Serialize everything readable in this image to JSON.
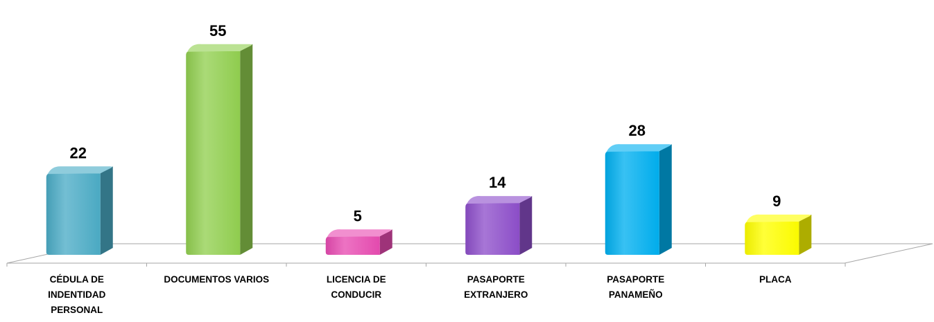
{
  "chart_data": {
    "type": "bar",
    "categories": [
      [
        "CÉDULA DE",
        "INDENTIDAD",
        "PERSONAL"
      ],
      [
        "DOCUMENTOS VARIOS"
      ],
      [
        "LICENCIA DE",
        "CONDUCIR"
      ],
      [
        "PASAPORTE",
        "EXTRANJERO"
      ],
      [
        "PASAPORTE",
        "PANAMEÑO"
      ],
      [
        "PLACA"
      ]
    ],
    "values": [
      22,
      55,
      5,
      14,
      28,
      9
    ],
    "value_labels": [
      "22",
      "55",
      "5",
      "14",
      "28",
      "9"
    ],
    "colors": [
      "#4BACC6",
      "#92D050",
      "#E84BB2",
      "#8E4FCB",
      "#00B0F0",
      "#FFFF00"
    ],
    "ylim": [
      0,
      55
    ],
    "grid": false,
    "legend": "none"
  }
}
